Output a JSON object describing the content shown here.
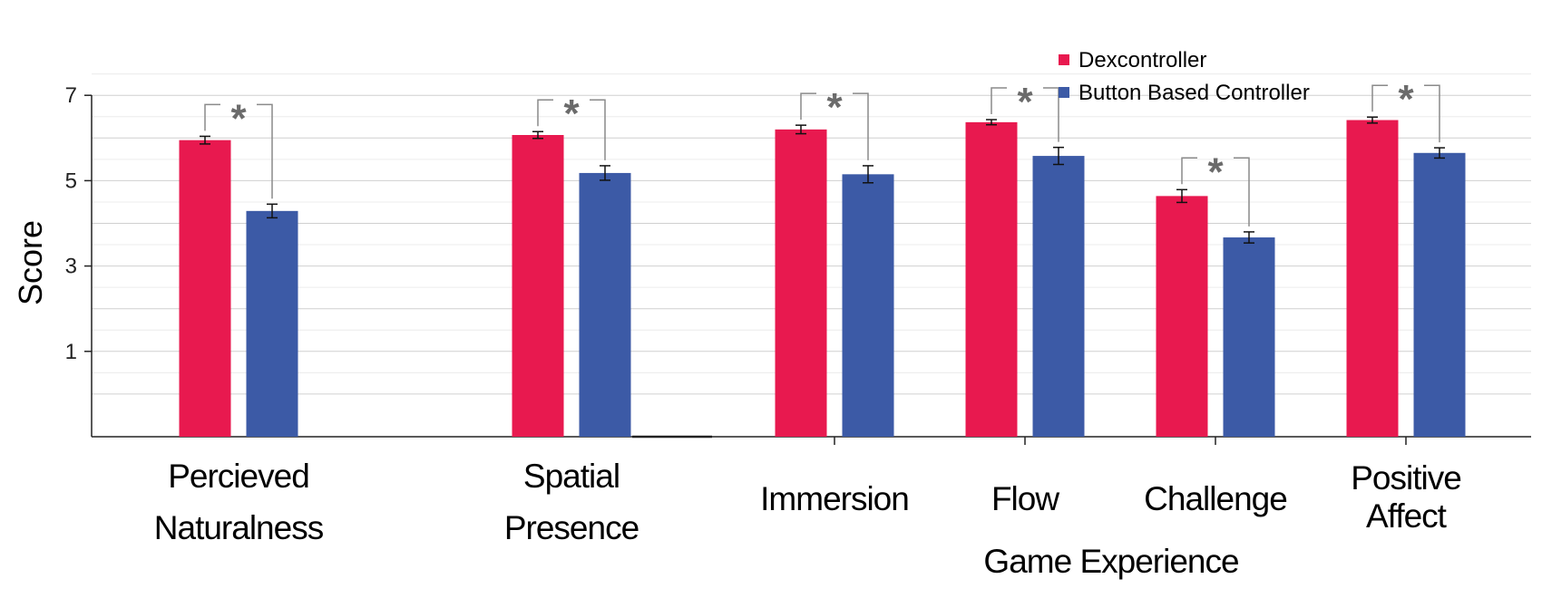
{
  "chart_data": {
    "type": "bar",
    "ylabel": "Score",
    "ylim": [
      -1,
      7.9
    ],
    "yticks": [
      "1",
      "3",
      "5",
      "7"
    ],
    "grid": true,
    "legend_position": "top-right",
    "colors": {
      "Dexcontroller": "#E8194F",
      "Button Based Controller": "#3C5AA6",
      "annotation": "#6b6b6b"
    },
    "categories": [
      {
        "id": "percieved-naturalness",
        "lines": [
          "Percieved",
          "Naturalness"
        ]
      },
      {
        "id": "spatial-presence",
        "lines": [
          "Spatial",
          "Presence"
        ]
      },
      {
        "id": "immersion",
        "lines": [
          "Immersion"
        ]
      },
      {
        "id": "flow",
        "lines": [
          "Flow"
        ]
      },
      {
        "id": "challenge",
        "lines": [
          "Challenge"
        ]
      },
      {
        "id": "positive-affect",
        "lines": [
          "Positive",
          "Affect"
        ]
      }
    ],
    "group_label": "Game Experience",
    "series": [
      {
        "name": "Dexcontroller",
        "values": [
          5.95,
          6.07,
          6.2,
          6.37,
          4.64,
          6.42
        ],
        "errors": [
          0.09,
          0.08,
          0.1,
          0.06,
          0.15,
          0.07
        ]
      },
      {
        "name": "Button Based Controller",
        "values": [
          4.29,
          5.18,
          5.15,
          5.58,
          3.67,
          5.65
        ],
        "errors": [
          0.16,
          0.17,
          0.2,
          0.2,
          0.13,
          0.12
        ]
      }
    ],
    "significance": [
      {
        "category": 0,
        "label": "*"
      },
      {
        "category": 1,
        "label": "*"
      },
      {
        "category": 2,
        "label": "*"
      },
      {
        "category": 3,
        "label": "*"
      },
      {
        "category": 4,
        "label": "*"
      },
      {
        "category": 5,
        "label": "*"
      }
    ]
  }
}
